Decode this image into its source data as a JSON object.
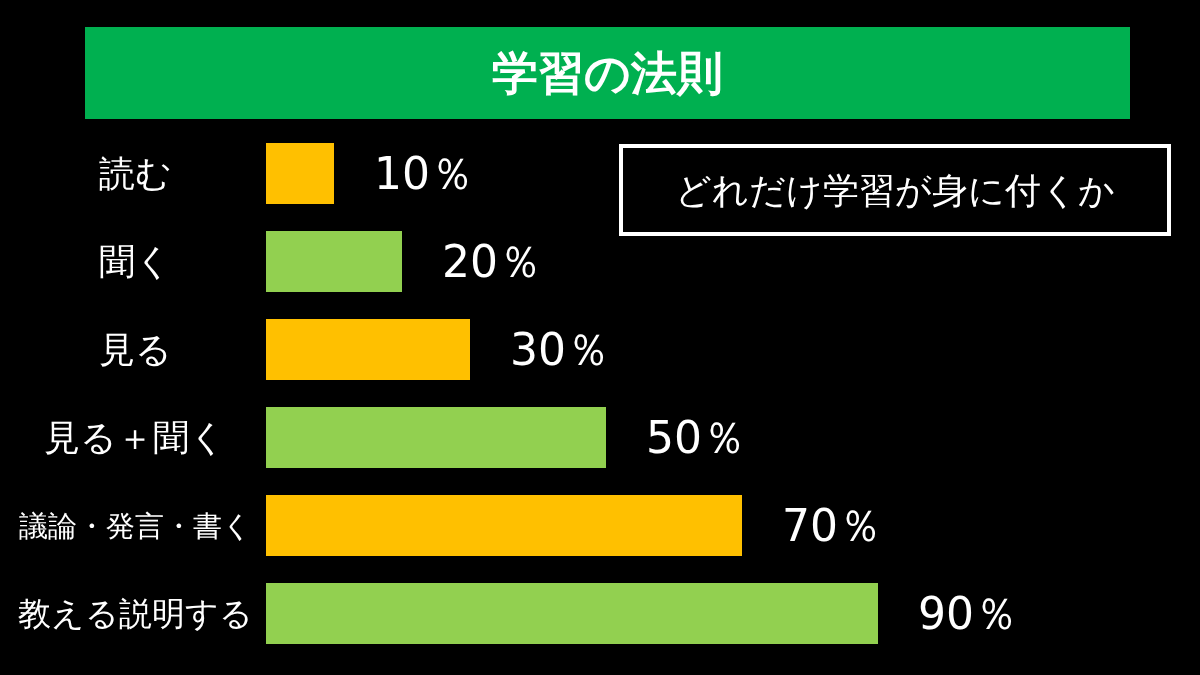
{
  "chart_data": {
    "type": "bar",
    "orientation": "horizontal",
    "title": "学習の法則",
    "annotations": [
      "どれだけ学習が身に付くか"
    ],
    "categories": [
      "読む",
      "聞く",
      "見る",
      "見る＋聞く",
      "議論・発言・書く",
      "教える説明する"
    ],
    "values": [
      10,
      20,
      30,
      50,
      70,
      90
    ],
    "colors": [
      "#ffc000",
      "#92d050",
      "#ffc000",
      "#92d050",
      "#ffc000",
      "#92d050"
    ],
    "value_labels": [
      "10％",
      "20％",
      "30％",
      "50％",
      "70％",
      "90％"
    ]
  }
}
